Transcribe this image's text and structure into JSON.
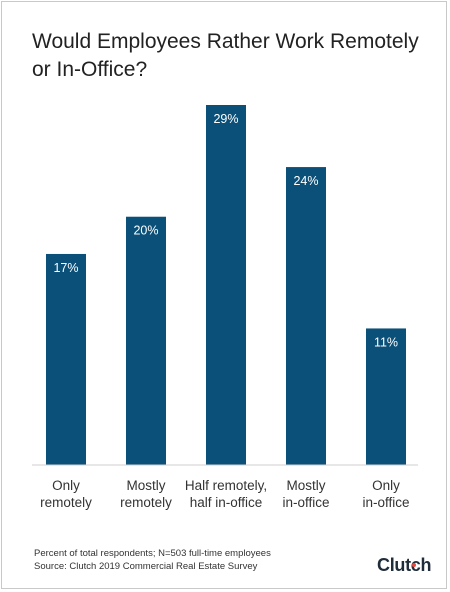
{
  "chart_data": {
    "type": "bar",
    "title": "Would Employees Rather Work Remotely\nor In-Office?",
    "categories": [
      "Only\nremotely",
      "Mostly\nremotely",
      "Half remotely,\nhalf in-office",
      "Mostly\nin-office",
      "Only\nin-office"
    ],
    "values": [
      17,
      20,
      29,
      24,
      11
    ],
    "value_labels": [
      "17%",
      "20%",
      "29%",
      "24%",
      "11%"
    ],
    "ylim": [
      0,
      30
    ],
    "grid": false,
    "bar_color": "#0b5078",
    "xlabel": "",
    "ylabel": ""
  },
  "footnote": {
    "line1": "Percent of total respondents; N=503 full-time employees",
    "line2": "Source: Clutch 2019 Commercial Real Estate Survey"
  },
  "logo": {
    "text": "Clutch",
    "dot_color": "#e8483d"
  }
}
